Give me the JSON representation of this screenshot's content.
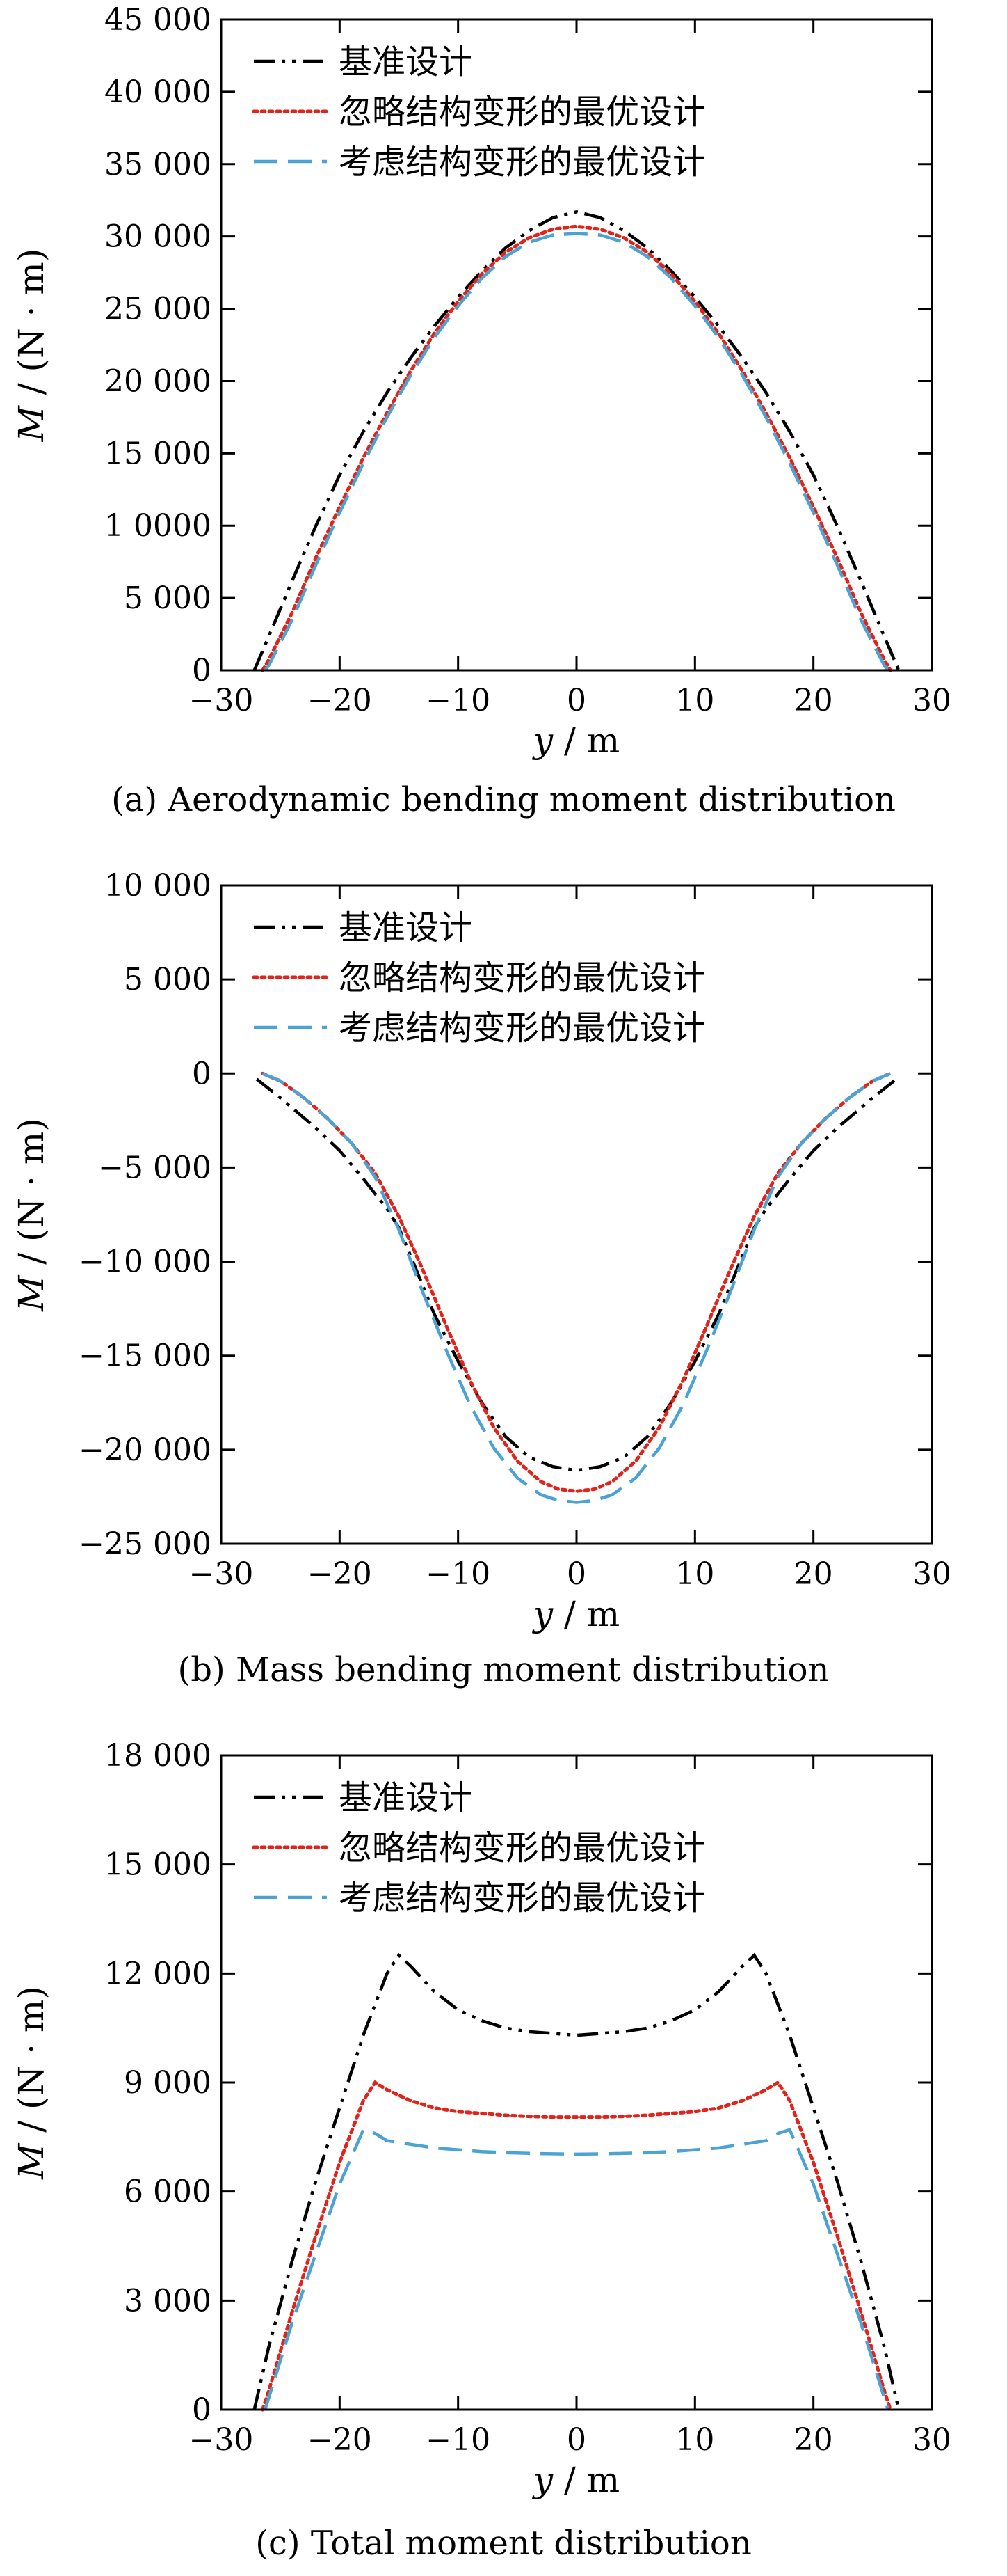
{
  "chart_data": [
    {
      "type": "line",
      "caption": "(a) Aerodynamic bending moment distribution",
      "xlabel_var": "y",
      "xlabel_unit": " / m",
      "ylabel_var": "M",
      "ylabel_unit": " / (N · m)",
      "xlim": [
        -30,
        30
      ],
      "ylim": [
        0,
        45000
      ],
      "xticks": [
        -30,
        -20,
        -10,
        0,
        10,
        20,
        30
      ],
      "xtick_labels": [
        "−30",
        "−20",
        "−10",
        "0",
        "10",
        "20",
        "30"
      ],
      "yticks": [
        0,
        5000,
        10000,
        15000,
        20000,
        25000,
        30000,
        35000,
        40000,
        45000
      ],
      "ytick_labels": [
        "0",
        "5 000",
        "1 0000",
        "15 000",
        "20 000",
        "25 000",
        "30 000",
        "35 000",
        "40 000",
        "45 000"
      ],
      "grid": false,
      "legend": "top-left",
      "series": [
        {
          "name": "基准设计",
          "color": "#000000",
          "dash": "dashdotdot",
          "x": [
            -27.2,
            -26,
            -24,
            -22,
            -20,
            -18,
            -16,
            -14,
            -12,
            -10,
            -8,
            -6,
            -4,
            -2,
            0,
            2,
            4,
            6,
            8,
            10,
            12,
            14,
            16,
            18,
            20,
            22,
            24,
            26,
            27.2
          ],
          "y": [
            0,
            2300,
            6200,
            10000,
            13500,
            16500,
            19200,
            21600,
            23800,
            25800,
            27600,
            29200,
            30400,
            31300,
            31700,
            31300,
            30400,
            29200,
            27600,
            25800,
            23800,
            21600,
            19200,
            16500,
            13500,
            10000,
            6200,
            2300,
            0
          ]
        },
        {
          "name": "忽略结构变形的最优设计",
          "color": "#e2231a",
          "dash": "dotted",
          "x": [
            -26.5,
            -26,
            -24,
            -22,
            -20,
            -18,
            -16,
            -14,
            -12,
            -10,
            -8,
            -6,
            -4,
            -2,
            0,
            2,
            4,
            6,
            8,
            10,
            12,
            14,
            16,
            18,
            20,
            22,
            24,
            26,
            26.5
          ],
          "y": [
            0,
            700,
            4000,
            7800,
            11300,
            14700,
            17800,
            20700,
            23300,
            25500,
            27400,
            28900,
            29900,
            30500,
            30700,
            30500,
            29900,
            28900,
            27400,
            25500,
            23300,
            20700,
            17800,
            14700,
            11300,
            7800,
            4000,
            700,
            0
          ]
        },
        {
          "name": "考虑结构变形的最优设计",
          "color": "#4aa3d4",
          "dash": "dashed",
          "x": [
            -26.3,
            -26,
            -24,
            -22,
            -20,
            -18,
            -16,
            -14,
            -12,
            -10,
            -8,
            -6,
            -4,
            -2,
            0,
            2,
            4,
            6,
            8,
            10,
            12,
            14,
            16,
            18,
            20,
            22,
            24,
            26,
            26.3
          ],
          "y": [
            0,
            300,
            3500,
            7300,
            10900,
            14300,
            17500,
            20400,
            23000,
            25200,
            27100,
            28600,
            29600,
            30100,
            30200,
            30100,
            29600,
            28600,
            27100,
            25200,
            23000,
            20400,
            17500,
            14300,
            10900,
            7300,
            3500,
            300,
            0
          ]
        }
      ]
    },
    {
      "type": "line",
      "caption": "(b) Mass bending moment distribution",
      "xlabel_var": "y",
      "xlabel_unit": " / m",
      "ylabel_var": "M",
      "ylabel_unit": " / (N · m)",
      "xlim": [
        -30,
        30
      ],
      "ylim": [
        -25000,
        10000
      ],
      "xticks": [
        -30,
        -20,
        -10,
        0,
        10,
        20,
        30
      ],
      "xtick_labels": [
        "−30",
        "−20",
        "−10",
        "0",
        "10",
        "20",
        "30"
      ],
      "yticks": [
        -25000,
        -20000,
        -15000,
        -10000,
        -5000,
        0,
        5000,
        10000
      ],
      "ytick_labels": [
        "−25 000",
        "−20 000",
        "−15 000",
        "−10 000",
        "−5 000",
        "0",
        "5 000",
        "10 000"
      ],
      "grid": false,
      "legend": "top-left",
      "series": [
        {
          "name": "基准设计",
          "color": "#000000",
          "dash": "dashdotdot",
          "x": [
            -27,
            -25,
            -22,
            -20,
            -18,
            -16,
            -15,
            -14,
            -12,
            -10,
            -8,
            -6,
            -4,
            -2,
            0,
            2,
            4,
            6,
            8,
            10,
            12,
            14,
            15,
            16,
            18,
            20,
            22,
            25,
            27
          ],
          "y": [
            -300,
            -1300,
            -2900,
            -4100,
            -5600,
            -7200,
            -8200,
            -9700,
            -12800,
            -15300,
            -17500,
            -19300,
            -20400,
            -20900,
            -21100,
            -20900,
            -20400,
            -19300,
            -17500,
            -15300,
            -12800,
            -9700,
            -8200,
            -7200,
            -5600,
            -4100,
            -2900,
            -1300,
            -300
          ]
        },
        {
          "name": "忽略结构变形的最优设计",
          "color": "#e2231a",
          "dash": "dotted",
          "x": [
            -26.5,
            -25,
            -23,
            -21,
            -19,
            -17,
            -15,
            -13,
            -11,
            -9,
            -7,
            -5,
            -3,
            -1.5,
            0,
            1.5,
            3,
            5,
            7,
            9,
            11,
            13,
            15,
            17,
            19,
            21,
            23,
            25,
            26.5
          ],
          "y": [
            0,
            -400,
            -1300,
            -2400,
            -3700,
            -5300,
            -7600,
            -10400,
            -13400,
            -16300,
            -18800,
            -20600,
            -21700,
            -22100,
            -22200,
            -22100,
            -21700,
            -20600,
            -18800,
            -16300,
            -13400,
            -10400,
            -7600,
            -5300,
            -3700,
            -2400,
            -1300,
            -400,
            0
          ]
        },
        {
          "name": "考虑结构变形的最优设计",
          "color": "#4aa3d4",
          "dash": "dashed",
          "x": [
            -26.5,
            -25,
            -23,
            -21,
            -19,
            -17,
            -15,
            -13,
            -11,
            -9,
            -7,
            -5,
            -3,
            -1.5,
            0,
            1.5,
            3,
            5,
            7,
            9,
            11,
            13,
            15,
            17,
            19,
            21,
            23,
            25,
            26.5
          ],
          "y": [
            0,
            -400,
            -1300,
            -2400,
            -3700,
            -5500,
            -8300,
            -11600,
            -14700,
            -17600,
            -19900,
            -21500,
            -22400,
            -22700,
            -22800,
            -22700,
            -22400,
            -21500,
            -19900,
            -17600,
            -14700,
            -11600,
            -8300,
            -5500,
            -3700,
            -2400,
            -1300,
            -400,
            0
          ]
        }
      ]
    },
    {
      "type": "line",
      "caption": "(c) Total moment distribution",
      "xlabel_var": "y",
      "xlabel_unit": " / m",
      "ylabel_var": "M",
      "ylabel_unit": " / (N · m)",
      "xlim": [
        -30,
        30
      ],
      "ylim": [
        0,
        18000
      ],
      "xticks": [
        -30,
        -20,
        -10,
        0,
        10,
        20,
        30
      ],
      "xtick_labels": [
        "−30",
        "−20",
        "−10",
        "0",
        "10",
        "20",
        "30"
      ],
      "yticks": [
        0,
        3000,
        6000,
        9000,
        12000,
        15000,
        18000
      ],
      "ytick_labels": [
        "0",
        "3 000",
        "6 000",
        "9 000",
        "12 000",
        "15 000",
        "18 000"
      ],
      "grid": false,
      "legend": "top-left",
      "series": [
        {
          "name": "基准设计",
          "color": "#000000",
          "dash": "dashdotdot",
          "x": [
            -27.2,
            -26,
            -24,
            -22,
            -20,
            -18,
            -16,
            -15,
            -14,
            -12,
            -10,
            -8,
            -6,
            -4,
            -2,
            0,
            2,
            4,
            6,
            8,
            10,
            12,
            14,
            15,
            16,
            18,
            20,
            22,
            24,
            26,
            27.2
          ],
          "y": [
            0,
            1700,
            4100,
            6300,
            8300,
            10300,
            12000,
            12500,
            12200,
            11500,
            11000,
            10700,
            10500,
            10400,
            10350,
            10300,
            10350,
            10400,
            10500,
            10700,
            11000,
            11500,
            12200,
            12500,
            12000,
            10300,
            8300,
            6300,
            4100,
            1700,
            0
          ]
        },
        {
          "name": "忽略结构变形的最优设计",
          "color": "#e2231a",
          "dash": "dotted",
          "x": [
            -26.5,
            -26,
            -24,
            -22,
            -20,
            -18,
            -17,
            -16,
            -14,
            -12,
            -10,
            -8,
            -6,
            -4,
            -2,
            0,
            2,
            4,
            6,
            8,
            10,
            12,
            14,
            16,
            17,
            18,
            20,
            22,
            24,
            26,
            26.5
          ],
          "y": [
            0,
            500,
            2700,
            4800,
            6800,
            8500,
            9000,
            8800,
            8500,
            8300,
            8200,
            8150,
            8100,
            8070,
            8050,
            8050,
            8050,
            8070,
            8100,
            8150,
            8200,
            8300,
            8500,
            8800,
            9000,
            8500,
            6800,
            4800,
            2700,
            500,
            0
          ]
        },
        {
          "name": "考虑结构变形的最优设计",
          "color": "#4aa3d4",
          "dash": "dashed",
          "x": [
            -26.3,
            -26,
            -24,
            -22,
            -20,
            -18,
            -17,
            -16,
            -14,
            -12,
            -10,
            -8,
            -6,
            -4,
            -2,
            0,
            2,
            4,
            6,
            8,
            10,
            12,
            14,
            16,
            17,
            18,
            20,
            22,
            24,
            26,
            26.3
          ],
          "y": [
            0,
            300,
            2400,
            4300,
            6200,
            7700,
            7600,
            7400,
            7300,
            7200,
            7150,
            7100,
            7070,
            7050,
            7040,
            7030,
            7040,
            7050,
            7070,
            7100,
            7150,
            7200,
            7300,
            7400,
            7600,
            7700,
            6200,
            4300,
            2400,
            300,
            0
          ]
        }
      ]
    }
  ]
}
